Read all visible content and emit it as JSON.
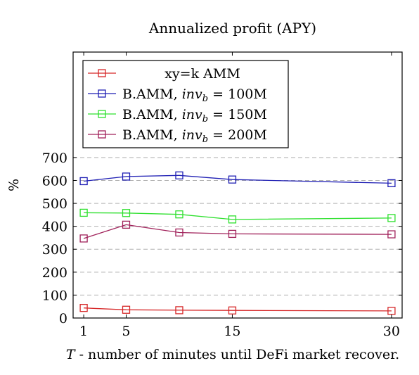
{
  "chart_data": {
    "type": "line",
    "title": "Annualized profit (APY)",
    "xlabel": "T - number of minutes until DeFi market recover.",
    "ylabel": "%",
    "x": [
      1,
      5,
      10,
      15,
      30
    ],
    "xticks": [
      1,
      5,
      15,
      30
    ],
    "yticks": [
      0,
      100,
      200,
      300,
      400,
      500,
      600,
      700
    ],
    "xlim": [
      0,
      31
    ],
    "ylim": [
      0,
      1160
    ],
    "grid": "horizontal-dashed",
    "legend_position": "top-left",
    "series": [
      {
        "name": "xy=k AMM",
        "name_parts": {
          "text": "xy=k AMM"
        },
        "color": "#d62728",
        "values": [
          44,
          36,
          34,
          33,
          31
        ]
      },
      {
        "name": "B.AMM, inv_b = 100M",
        "name_parts": {
          "prefix": "B.AMM, ",
          "var": "inv",
          "sub": "b",
          "suffix": " = 100M"
        },
        "color": "#1f1fb4",
        "values": [
          597,
          617,
          622,
          604,
          588
        ]
      },
      {
        "name": "B.AMM, inv_b = 150M",
        "name_parts": {
          "prefix": "B.AMM, ",
          "var": "inv",
          "sub": "b",
          "suffix": " = 150M"
        },
        "color": "#2ee02e",
        "values": [
          459,
          458,
          452,
          430,
          436
        ]
      },
      {
        "name": "B.AMM, inv_b = 200M",
        "name_parts": {
          "prefix": "B.AMM, ",
          "var": "inv",
          "sub": "b",
          "suffix": " = 200M"
        },
        "color": "#a0215a",
        "values": [
          347,
          407,
          373,
          367,
          365
        ]
      }
    ]
  }
}
